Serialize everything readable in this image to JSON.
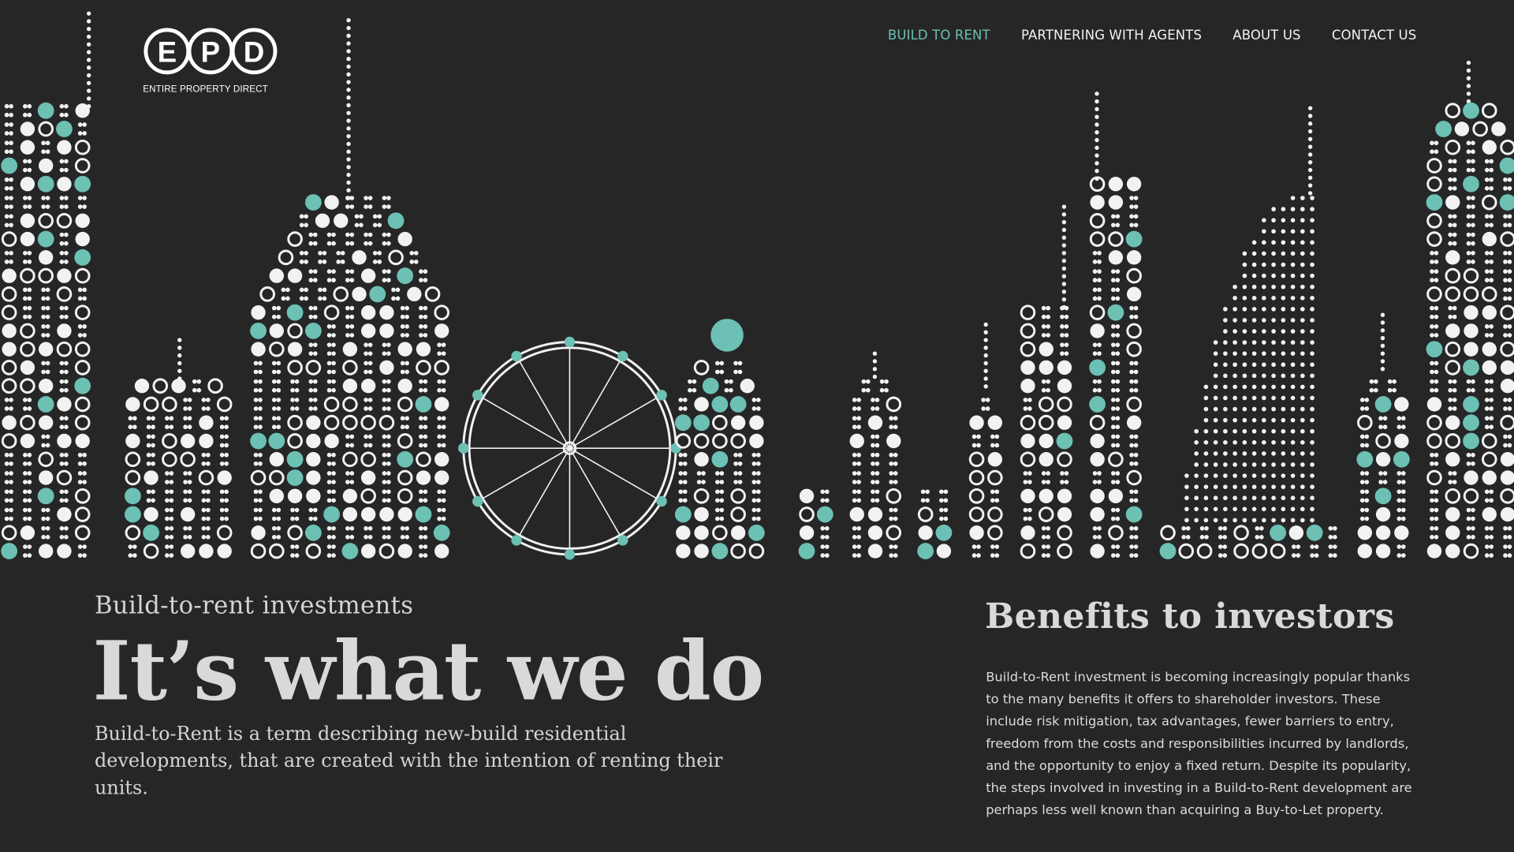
{
  "brand": {
    "logo_letters": "EPD",
    "tagline": "ENTIRE PROPERTY DIRECT"
  },
  "nav": {
    "items": [
      {
        "label": "BUILD TO RENT",
        "active": true
      },
      {
        "label": "PARTNERING WITH AGENTS",
        "active": false
      },
      {
        "label": "ABOUT US",
        "active": false
      },
      {
        "label": "CONTACT US",
        "active": false
      }
    ]
  },
  "hero": {
    "kicker": "Build-to-rent investments",
    "title": "It’s what we do",
    "lead": "Build-to-Rent is a term describing new-build residential developments, that are created with the intention of renting their units."
  },
  "benefits": {
    "title": "Benefits to investors",
    "body": "Build-to-Rent investment is becoming increasingly popular thanks to the many benefits it offers to shareholder investors. These include risk mitigation, tax advantages, fewer barriers to entry, freedom from the costs and responsibilities incurred by landlords, and the opportunity to enjoy a fixed return. Despite its popularity, the steps involved in investing in a Build-to-Rent development are perhaps less well known than acquiring a Buy-to-Let property."
  },
  "colors": {
    "background": "#262626",
    "accent": "#6cc0b4",
    "dots": "#f2f2f2"
  },
  "skyline": {
    "icon": "dotted-city-skyline-illustration"
  }
}
